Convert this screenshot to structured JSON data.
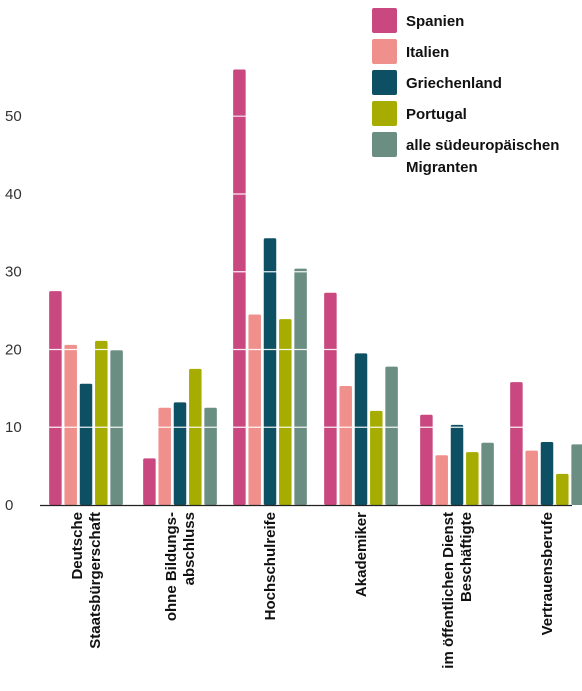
{
  "chart_data": {
    "type": "bar",
    "categories": [
      [
        "Deutsche",
        "Staatsbürgerschaft"
      ],
      [
        "ohne Bildungs-",
        "abschluss"
      ],
      [
        "Hochschulreife"
      ],
      [
        "Akademiker"
      ],
      [
        "im öffentlichen Dienst",
        "Beschäftigte"
      ],
      [
        "Vertrauensberufe"
      ]
    ],
    "series": [
      {
        "name": "Spanien",
        "color": "#c9487f",
        "values": [
          27.5,
          6.0,
          56.0,
          27.3,
          11.6,
          15.8
        ]
      },
      {
        "name": "Italien",
        "color": "#f0908c",
        "values": [
          20.6,
          12.5,
          24.5,
          15.3,
          6.4,
          7.0
        ]
      },
      {
        "name": "Griechenland",
        "color": "#0d4f63",
        "values": [
          15.6,
          13.2,
          34.3,
          19.5,
          10.3,
          8.1
        ]
      },
      {
        "name": "Portugal",
        "color": "#a6ad00",
        "values": [
          21.1,
          17.5,
          23.9,
          12.1,
          6.8,
          4.0
        ]
      },
      {
        "name": "alle südeuropäischen Migranten",
        "legend_lines": [
          "alle südeuropäischen",
          "Migranten"
        ],
        "color": "#6b8e83",
        "values": [
          19.9,
          12.5,
          30.4,
          17.8,
          8.0,
          7.8
        ]
      }
    ],
    "yticks": [
      0,
      10,
      20,
      30,
      40,
      50
    ],
    "ylim": [
      0,
      58
    ],
    "grid": true,
    "legend_position": "top-right",
    "title": "",
    "xlabel": "",
    "ylabel": ""
  }
}
